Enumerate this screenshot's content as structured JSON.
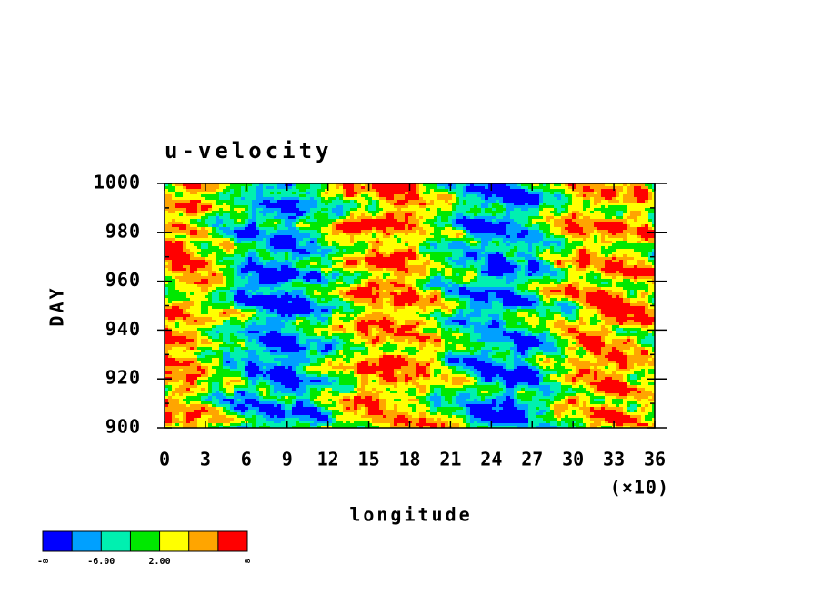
{
  "chart_data": {
    "type": "contour",
    "title": "u-velocity",
    "x_label": "longitude",
    "y_label": "DAY",
    "x_multiplier_label": "(×10)",
    "xlim": [
      0,
      36
    ],
    "xticks": [
      0,
      3,
      6,
      9,
      12,
      15,
      18,
      21,
      24,
      27,
      30,
      33,
      36
    ],
    "ylim": [
      900,
      1000
    ],
    "yticks": [
      900,
      920,
      940,
      960,
      980,
      1000
    ],
    "yticks_minor": [
      910,
      930,
      950,
      970,
      990
    ],
    "colorbar": {
      "colors": [
        "#0000ff",
        "#00a0ff",
        "#00f0b0",
        "#00e800",
        "#ffff00",
        "#ffa500",
        "#ff0000"
      ],
      "labels": [
        "-∞",
        null,
        "-6.00",
        null,
        "2.00",
        null,
        null,
        "∞"
      ]
    }
  }
}
